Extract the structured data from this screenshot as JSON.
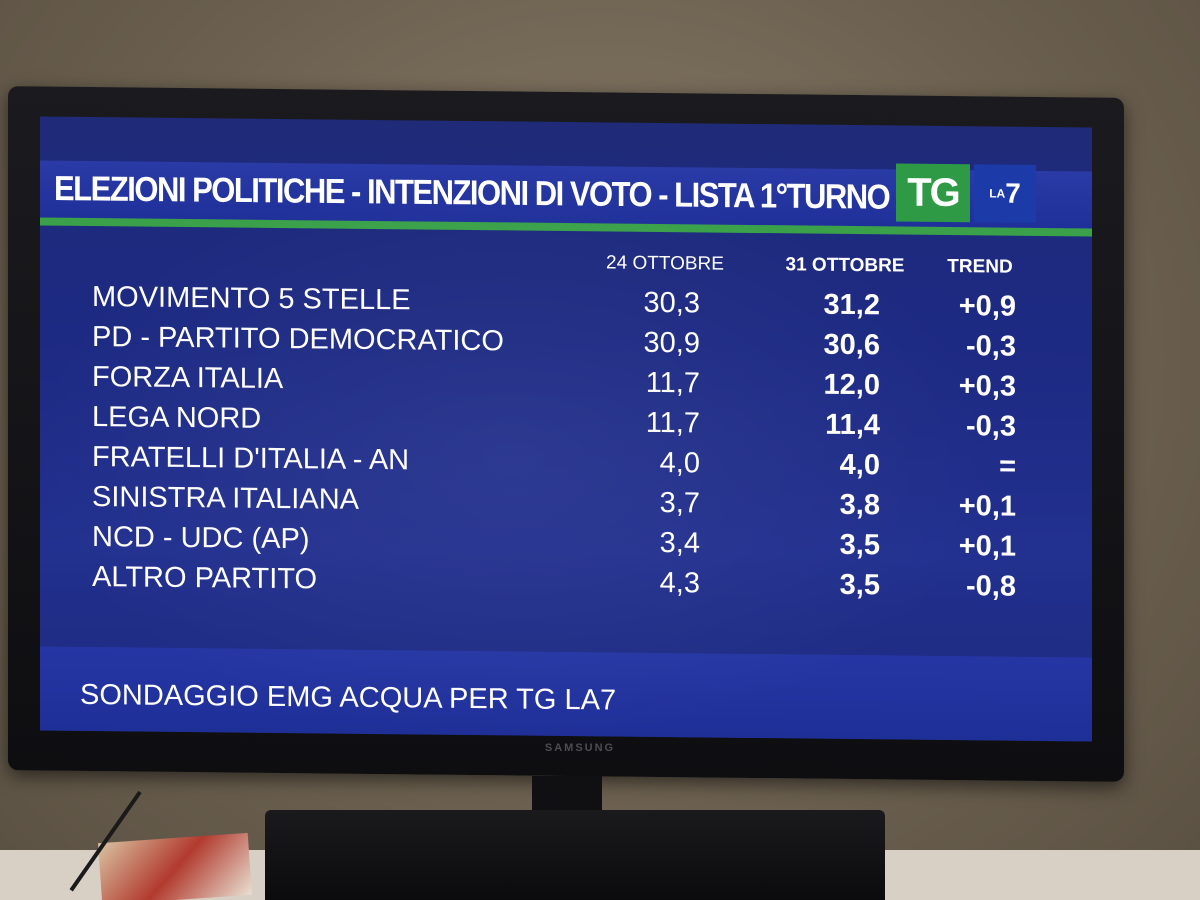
{
  "broadcast": {
    "title": "ELEZIONI POLITICHE - INTENZIONI DI VOTO - LISTA 1°TURNO",
    "logo_tg": "TG",
    "logo_la": "LA",
    "logo_7": "7",
    "brand": "SAMSUNG",
    "footer": "SONDAGGIO EMG ACQUA PER TG LA7"
  },
  "table": {
    "columns": [
      "24 OTTOBRE",
      "31 OTTOBRE",
      "TREND"
    ],
    "rows": [
      {
        "party": "MOVIMENTO 5 STELLE",
        "v1": "30,3",
        "v2": "31,2",
        "trend": "+0,9"
      },
      {
        "party": "PD - PARTITO DEMOCRATICO",
        "v1": "30,9",
        "v2": "30,6",
        "trend": "-0,3"
      },
      {
        "party": "FORZA ITALIA",
        "v1": "11,7",
        "v2": "12,0",
        "trend": "+0,3"
      },
      {
        "party": "LEGA NORD",
        "v1": "11,7",
        "v2": "11,4",
        "trend": "-0,3"
      },
      {
        "party": "FRATELLI D'ITALIA - AN",
        "v1": "4,0",
        "v2": "4,0",
        "trend": "="
      },
      {
        "party": "SINISTRA ITALIANA",
        "v1": "3,7",
        "v2": "3,8",
        "trend": "+0,1"
      },
      {
        "party": "NCD - UDC (AP)",
        "v1": "3,4",
        "v2": "3,5",
        "trend": "+0,1"
      },
      {
        "party": "ALTRO PARTITO",
        "v1": "4,3",
        "v2": "3,5",
        "trend": "-0,8"
      }
    ]
  },
  "colors": {
    "screen_blue": "#1d2a83",
    "accent_green": "#3aa14a",
    "logo_blue": "#1c3aa8"
  }
}
